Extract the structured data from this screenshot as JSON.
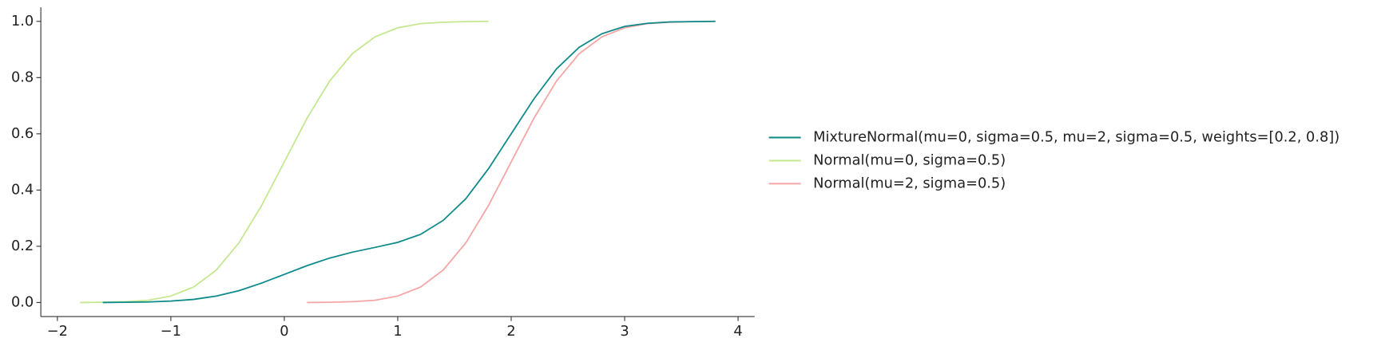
{
  "chart_data": {
    "type": "line",
    "xlim": [
      -2.146,
      4.146
    ],
    "ylim": [
      -0.05,
      1.05
    ],
    "xticks": [
      {
        "value": -2,
        "label": "−2"
      },
      {
        "value": -1,
        "label": "−1"
      },
      0,
      1,
      2,
      3,
      4
    ],
    "yticks": [
      {
        "value": 0,
        "label": "0.0"
      },
      {
        "value": 0.2,
        "label": "0.2"
      },
      {
        "value": 0.4,
        "label": "0.4"
      },
      {
        "value": 0.6,
        "label": "0.6"
      },
      {
        "value": 0.8,
        "label": "0.8"
      },
      {
        "value": 1,
        "label": "1.0"
      }
    ],
    "legend": "right",
    "series": [
      {
        "name": "MixtureNormal(mu=0, sigma=0.5, mu=2, sigma=0.5, weights=[0.2, 0.8])",
        "color": "#0e8a8a",
        "x": [
          -1.6,
          -1.4,
          -1.2,
          -1.0,
          -0.8,
          -0.6,
          -0.4,
          -0.2,
          0,
          0.2,
          0.4,
          0.6,
          0.8,
          1.0,
          1.2,
          1.4,
          1.6,
          1.8,
          2.0,
          2.2,
          2.4,
          2.6,
          2.8,
          3.0,
          3.2,
          3.4,
          3.6,
          3.8
        ],
        "values": [
          0.0,
          0.001,
          0.002,
          0.005,
          0.011,
          0.023,
          0.042,
          0.069,
          0.1,
          0.131,
          0.158,
          0.179,
          0.196,
          0.214,
          0.242,
          0.292,
          0.369,
          0.476,
          0.6,
          0.724,
          0.831,
          0.908,
          0.956,
          0.982,
          0.993,
          0.998,
          0.999,
          1.0
        ]
      },
      {
        "name": "Normal(mu=0, sigma=0.5)",
        "color": "#c3e88e",
        "x": [
          -1.8,
          -1.6,
          -1.4,
          -1.2,
          -1.0,
          -0.8,
          -0.6,
          -0.4,
          -0.2,
          0,
          0.2,
          0.4,
          0.6,
          0.8,
          1.0,
          1.2,
          1.4,
          1.6,
          1.8
        ],
        "values": [
          0.0,
          0.001,
          0.003,
          0.008,
          0.023,
          0.055,
          0.115,
          0.212,
          0.345,
          0.5,
          0.655,
          0.788,
          0.885,
          0.945,
          0.977,
          0.992,
          0.997,
          0.999,
          1.0
        ]
      },
      {
        "name": "Normal(mu=2, sigma=0.5)",
        "color": "#f6a5a5",
        "x": [
          0.2,
          0.4,
          0.6,
          0.8,
          1.0,
          1.2,
          1.4,
          1.6,
          1.8,
          2.0,
          2.2,
          2.4,
          2.6,
          2.8,
          3.0,
          3.2,
          3.4,
          3.6,
          3.8
        ],
        "values": [
          0.0,
          0.001,
          0.003,
          0.008,
          0.023,
          0.055,
          0.115,
          0.212,
          0.345,
          0.5,
          0.655,
          0.788,
          0.885,
          0.945,
          0.977,
          0.992,
          0.997,
          0.999,
          1.0
        ]
      }
    ]
  }
}
